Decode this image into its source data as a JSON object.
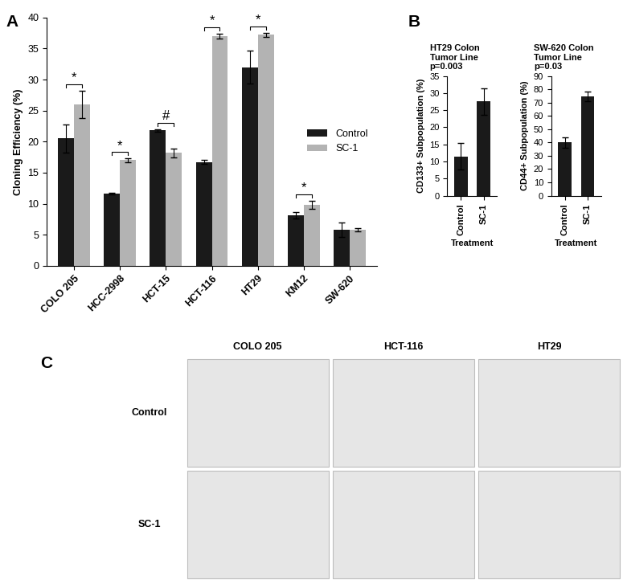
{
  "chart_data": [
    {
      "panel": "A",
      "type": "bar",
      "y_label": "Cloning Efficiency (%)",
      "categories": [
        "COLO 205",
        "HCC-2998",
        "HCT-15",
        "HCT-116",
        "HT29",
        "KM12",
        "SW-620"
      ],
      "series": [
        {
          "name": "Control",
          "color": "#1a1a1a",
          "values": [
            20.5,
            11.6,
            21.8,
            16.7,
            32.0,
            8.1,
            5.8
          ],
          "errors": [
            2.3,
            0.1,
            0.2,
            0.3,
            2.7,
            0.5,
            1.2
          ]
        },
        {
          "name": "SC-1",
          "color": "#b3b3b3",
          "values": [
            26.0,
            17.0,
            18.2,
            37.0,
            37.2,
            9.8,
            5.8
          ],
          "errors": [
            2.2,
            0.3,
            0.7,
            0.4,
            0.3,
            0.7,
            0.2
          ]
        }
      ],
      "significance": [
        "*",
        "*",
        "#",
        "*",
        "*",
        "*",
        null
      ],
      "ylim": [
        0,
        40
      ],
      "yticks": [
        0,
        5,
        10,
        15,
        20,
        25,
        30,
        35,
        40
      ],
      "legend": "center right"
    },
    {
      "panel": "B",
      "type": "bar",
      "title": "HT29 Colon\nTumor Line",
      "subtitle": "p=0.003",
      "y_label": "CD133+ Subpopulation (%)",
      "x_label": "Treatment",
      "categories": [
        "Control",
        "SC-1"
      ],
      "values": [
        11.5,
        27.5
      ],
      "errors": [
        3.8,
        3.8
      ],
      "color": "#1a1a1a",
      "ylim": [
        0,
        35
      ],
      "yticks": [
        0,
        5,
        10,
        15,
        20,
        25,
        30,
        35
      ]
    },
    {
      "type": "bar",
      "title": "SW-620 Colon\nTumor Line",
      "subtitle": "p=0.03",
      "y_label": "CD44+ Subpopulation (%)",
      "x_label": "Treatment",
      "categories": [
        "Control",
        "SC-1"
      ],
      "values": [
        40,
        74.5
      ],
      "errors": [
        4,
        3.5
      ],
      "color": "#1a1a1a",
      "ylim": [
        0,
        90
      ],
      "yticks": [
        0,
        10,
        20,
        30,
        40,
        50,
        60,
        70,
        80,
        90
      ]
    }
  ],
  "image_panel": {
    "panel": "C",
    "columns": [
      "COLO 205",
      "HCT-116",
      "HT29"
    ],
    "rows": [
      "Control",
      "SC-1"
    ]
  }
}
